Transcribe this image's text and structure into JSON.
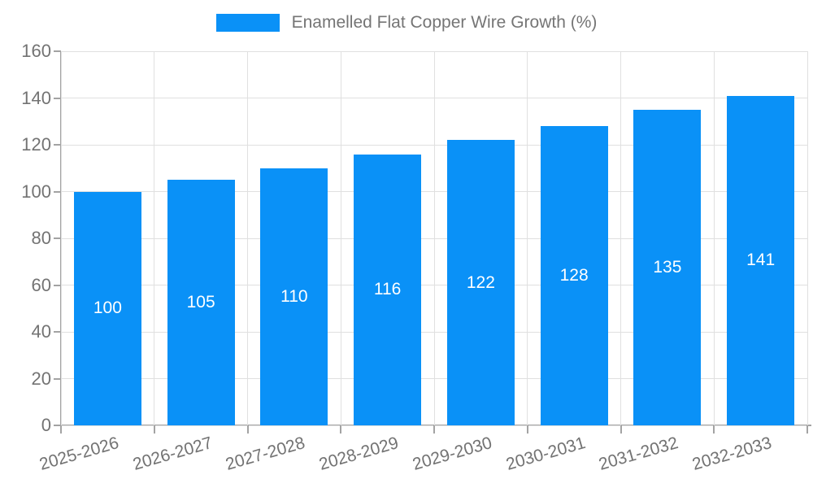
{
  "legend": {
    "label": "Enamelled Flat Copper Wire Growth (%)"
  },
  "chart_data": {
    "type": "bar",
    "title": "",
    "categories": [
      "2025-2026",
      "2026-2027",
      "2027-2028",
      "2028-2029",
      "2029-2030",
      "2030-2031",
      "2031-2032",
      "2032-2033"
    ],
    "values": [
      100,
      105,
      110,
      116,
      122,
      128,
      135,
      141
    ],
    "series_name": "Enamelled Flat Copper Wire Growth (%)",
    "xlabel": "",
    "ylabel": "",
    "ylim": [
      0,
      160
    ],
    "ytick_step": 20,
    "yticks": [
      0,
      20,
      40,
      60,
      80,
      100,
      120,
      140,
      160
    ],
    "grid": true,
    "legend_position": "top",
    "x_label_rotation_deg": -16,
    "bar_color": "#0A91F7",
    "bar_value_label_color": "#ffffff",
    "grid_color": "#e0e0e0",
    "axis_color": "#a3a3a3",
    "tick_text_color": "#737373",
    "legend_text_color": "#757575"
  }
}
